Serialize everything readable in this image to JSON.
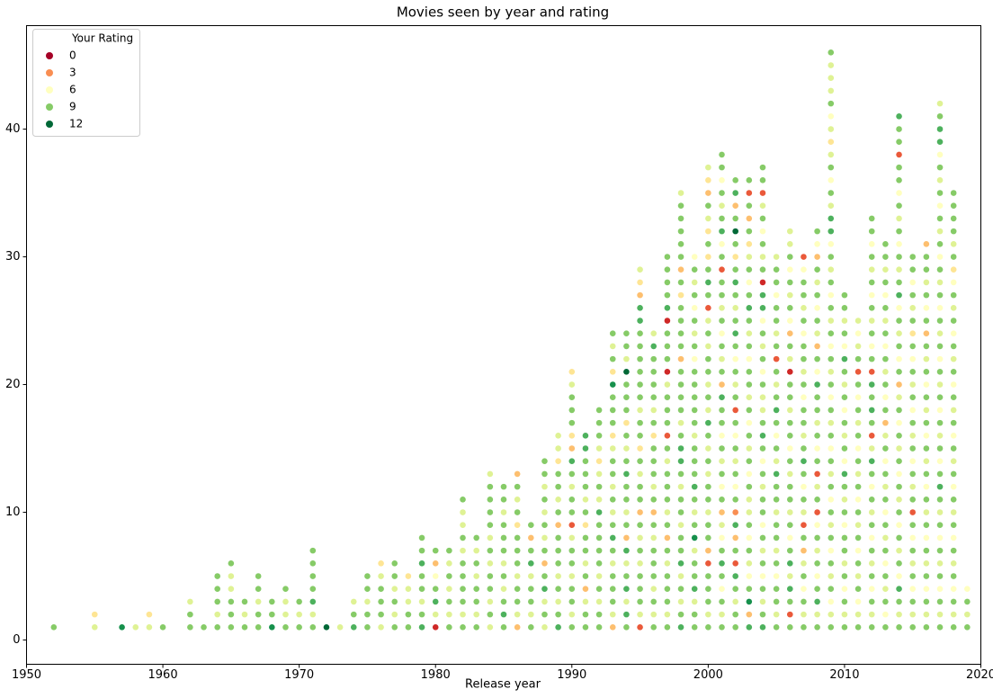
{
  "chart_data": {
    "type": "scatter",
    "title": "Movies seen by year and rating",
    "x_label": "Release year",
    "legend_title": "Your Rating",
    "legend_values": [
      0,
      3,
      6,
      9,
      12
    ],
    "colormap": "RdYlGn",
    "legend_loc": "upper left",
    "xlim": [
      1950,
      2020
    ],
    "xticks": [
      1950,
      1960,
      1970,
      1980,
      1990,
      2000,
      2010,
      2020
    ],
    "ylim": [
      -1.9,
      48.1
    ],
    "yticks": [
      0,
      10,
      20,
      30,
      40
    ],
    "columns": [
      {
        "year": 1952,
        "ratings": [
          9
        ]
      },
      {
        "year": 1955,
        "ratings": [
          7,
          5
        ]
      },
      {
        "year": 1957,
        "ratings": [
          11
        ]
      },
      {
        "year": 1958,
        "ratings": [
          7
        ]
      },
      {
        "year": 1959,
        "ratings": [
          7,
          5
        ]
      },
      {
        "year": 1960,
        "ratings": [
          9
        ]
      },
      {
        "year": 1962,
        "ratings": [
          9,
          9,
          7
        ]
      },
      {
        "year": 1963,
        "ratings": [
          9
        ]
      },
      {
        "year": 1964,
        "ratings": [
          9,
          7,
          9,
          9,
          9
        ]
      },
      {
        "year": 1965,
        "ratings": [
          9,
          9,
          9,
          7,
          7,
          9
        ]
      },
      {
        "year": 1966,
        "ratings": [
          9,
          7,
          9
        ]
      },
      {
        "year": 1967,
        "ratings": [
          9,
          9,
          7,
          9,
          9
        ]
      },
      {
        "year": 1968,
        "ratings": [
          11,
          9,
          9
        ]
      },
      {
        "year": 1969,
        "ratings": [
          9,
          7,
          7,
          9
        ]
      },
      {
        "year": 1970,
        "ratings": [
          9,
          7,
          9
        ]
      },
      {
        "year": 1971,
        "ratings": [
          9,
          7,
          10,
          9,
          9,
          9,
          9
        ]
      },
      {
        "year": 1972,
        "ratings": [
          12
        ]
      },
      {
        "year": 1973,
        "ratings": [
          7
        ]
      },
      {
        "year": 1974,
        "ratings": [
          10,
          9,
          7
        ]
      },
      {
        "year": 1975,
        "ratings": [
          9,
          9,
          7,
          9,
          9
        ]
      },
      {
        "year": 1976,
        "ratings": [
          7,
          9,
          9,
          9,
          7,
          5
        ]
      },
      {
        "year": 1977,
        "ratings": [
          9,
          7,
          9,
          7,
          9,
          9
        ]
      },
      {
        "year": 1978,
        "ratings": [
          9,
          9,
          7,
          7,
          5
        ]
      },
      {
        "year": 1979,
        "ratings": [
          10,
          9,
          7,
          9,
          9,
          10,
          9,
          9
        ]
      },
      {
        "year": 1980,
        "ratings": [
          1,
          7,
          10,
          9,
          6,
          4,
          9
        ]
      },
      {
        "year": 1981,
        "ratings": [
          9,
          7,
          9,
          7,
          9,
          7,
          9
        ]
      },
      {
        "year": 1982,
        "ratings": [
          9,
          7,
          9,
          9,
          9,
          9,
          7,
          9,
          7,
          7,
          9
        ]
      },
      {
        "year": 1983,
        "ratings": [
          9,
          7,
          9,
          9,
          7,
          9,
          7,
          9
        ]
      },
      {
        "year": 1984,
        "ratings": [
          7,
          9,
          7,
          9,
          9,
          7,
          9,
          7,
          9,
          9,
          9,
          9,
          7
        ]
      },
      {
        "year": 1985,
        "ratings": [
          9,
          10,
          9,
          7,
          9,
          7,
          9,
          9,
          9,
          7,
          9,
          9
        ]
      },
      {
        "year": 1986,
        "ratings": [
          4,
          7,
          9,
          9,
          7,
          9,
          9,
          9,
          5,
          9,
          7,
          9,
          4
        ]
      },
      {
        "year": 1987,
        "ratings": [
          9,
          7,
          9,
          9,
          7,
          10,
          9,
          4,
          9
        ]
      },
      {
        "year": 1988,
        "ratings": [
          7,
          9,
          7,
          10,
          9,
          4,
          9,
          7,
          9,
          7,
          9,
          7,
          9,
          9
        ]
      },
      {
        "year": 1989,
        "ratings": [
          10,
          9,
          7,
          9,
          7,
          9,
          9,
          9,
          4,
          9,
          7,
          9,
          9,
          5,
          7,
          7
        ]
      },
      {
        "year": 1990,
        "ratings": [
          9,
          7,
          9,
          9,
          7,
          9,
          9,
          7,
          2,
          9,
          9,
          7,
          9,
          10,
          4,
          5,
          9,
          9,
          9,
          7,
          5
        ]
      },
      {
        "year": 1991,
        "ratings": [
          9,
          9,
          7,
          4,
          9,
          7,
          9,
          9,
          5,
          9,
          7,
          9,
          9,
          9,
          10,
          10
        ]
      },
      {
        "year": 1992,
        "ratings": [
          9,
          9,
          7,
          9,
          7,
          9,
          9,
          9,
          9,
          10,
          7,
          9,
          7,
          5,
          7,
          9,
          9,
          9
        ]
      },
      {
        "year": 1993,
        "ratings": [
          4,
          7,
          9,
          9,
          9,
          7,
          9,
          10,
          9,
          7,
          9,
          7,
          9,
          9,
          7,
          5,
          9,
          9,
          9,
          11,
          5,
          9,
          7,
          9
        ]
      },
      {
        "year": 1994,
        "ratings": [
          9,
          10,
          7,
          10,
          9,
          7,
          10,
          4,
          9,
          7,
          9,
          9,
          10,
          9,
          7,
          9,
          5,
          9,
          9,
          9,
          12,
          7,
          9,
          9
        ]
      },
      {
        "year": 1995,
        "ratings": [
          2,
          7,
          9,
          9,
          9,
          7,
          9,
          7,
          9,
          4,
          9,
          9,
          7,
          9,
          5,
          9,
          9,
          7,
          9,
          9,
          9,
          9,
          9,
          9,
          10,
          10,
          4,
          5,
          7
        ]
      },
      {
        "year": 1996,
        "ratings": [
          9,
          7,
          9,
          7,
          9,
          9,
          9,
          7,
          9,
          4,
          9,
          7,
          9,
          9,
          9,
          5,
          9,
          7,
          9,
          9,
          9,
          9,
          10,
          7
        ]
      },
      {
        "year": 1997,
        "ratings": [
          9,
          7,
          9,
          9,
          9,
          7,
          9,
          4,
          9,
          7,
          9,
          9,
          9,
          7,
          9,
          2,
          9,
          9,
          9,
          7,
          1,
          9,
          9,
          9,
          1,
          10,
          9,
          9,
          9,
          9
        ]
      },
      {
        "year": 1998,
        "ratings": [
          10,
          9,
          7,
          9,
          7,
          10,
          9,
          9,
          7,
          9,
          9,
          7,
          9,
          10,
          10,
          9,
          7,
          9,
          9,
          9,
          9,
          4,
          9,
          9,
          9,
          9,
          5,
          9,
          4,
          9,
          9,
          9,
          9,
          9,
          7
        ]
      },
      {
        "year": 1999,
        "ratings": [
          9,
          9,
          7,
          10,
          9,
          9,
          7,
          11,
          9,
          7,
          9,
          10,
          9,
          9,
          9,
          7,
          9,
          9,
          9,
          9,
          9,
          6,
          9,
          7,
          9,
          6,
          9,
          7,
          9,
          6
        ]
      },
      {
        "year": 2000,
        "ratings": [
          9,
          7,
          9,
          9,
          9,
          2,
          4,
          9,
          9,
          7,
          9,
          9,
          7,
          9,
          7,
          9,
          10,
          7,
          9,
          7,
          9,
          9,
          7,
          9,
          7,
          2,
          9,
          10,
          9,
          5,
          9,
          5,
          7,
          9,
          4,
          5,
          7
        ]
      },
      {
        "year": 2001,
        "ratings": [
          9,
          7,
          9,
          6,
          9,
          10,
          9,
          6,
          7,
          4,
          9,
          6,
          9,
          7,
          9,
          6,
          9,
          9,
          10,
          4,
          9,
          7,
          9,
          6,
          9,
          7,
          9,
          9,
          2,
          9,
          6,
          10,
          9,
          7,
          9,
          6,
          9,
          9
        ]
      },
      {
        "year": 2002,
        "ratings": [
          9,
          9,
          7,
          9,
          10,
          2,
          9,
          4,
          10,
          3,
          9,
          6,
          9,
          7,
          9,
          6,
          9,
          2,
          9,
          7,
          9,
          6,
          9,
          10,
          9,
          7,
          9,
          10,
          9,
          5,
          9,
          12,
          9,
          4,
          10,
          9
        ]
      },
      {
        "year": 2003,
        "ratings": [
          10,
          4,
          11,
          9,
          6,
          7,
          9,
          6,
          9,
          7,
          7,
          9,
          6,
          9,
          7,
          9,
          6,
          9,
          7,
          9,
          9,
          6,
          9,
          7,
          9,
          10,
          9,
          6,
          9,
          7,
          5,
          9,
          4,
          9,
          2,
          9
        ]
      },
      {
        "year": 2004,
        "ratings": [
          10,
          9,
          7,
          9,
          6,
          9,
          7,
          9,
          6,
          9,
          9,
          7,
          9,
          6,
          9,
          10,
          9,
          7,
          7,
          9,
          6,
          9,
          7,
          9,
          6,
          10,
          10,
          1,
          9,
          7,
          9,
          6,
          9,
          7,
          2,
          9,
          9
        ]
      },
      {
        "year": 2005,
        "ratings": [
          9,
          7,
          9,
          9,
          6,
          9,
          7,
          9,
          9,
          7,
          9,
          9,
          10,
          7,
          9,
          6,
          9,
          10,
          9,
          7,
          9,
          2,
          9,
          7,
          9,
          9,
          6,
          9,
          9,
          7
        ]
      },
      {
        "year": 2006,
        "ratings": [
          9,
          2,
          9,
          10,
          7,
          10,
          9,
          6,
          9,
          7,
          9,
          9,
          7,
          9,
          6,
          9,
          9,
          7,
          9,
          9,
          1,
          7,
          9,
          4,
          6,
          9,
          7,
          9,
          6,
          9,
          7,
          7
        ]
      },
      {
        "year": 2007,
        "ratings": [
          9,
          7,
          9,
          6,
          9,
          7,
          4,
          9,
          2,
          7,
          9,
          6,
          9,
          10,
          9,
          7,
          9,
          9,
          6,
          9,
          7,
          9,
          9,
          6,
          9,
          7,
          9,
          9,
          6,
          2
        ]
      },
      {
        "year": 2008,
        "ratings": [
          9,
          7,
          10,
          9,
          6,
          9,
          7,
          9,
          6,
          2,
          9,
          7,
          2,
          9,
          6,
          9,
          7,
          9,
          9,
          10,
          6,
          9,
          4,
          7,
          9,
          6,
          9,
          7,
          9,
          4,
          6,
          9
        ]
      },
      {
        "year": 2009,
        "ratings": [
          9,
          7,
          6,
          9,
          7,
          9,
          6,
          9,
          7,
          9,
          6,
          9,
          7,
          9,
          6,
          9,
          7,
          9,
          6,
          9,
          7,
          9,
          6,
          9,
          7,
          9,
          6,
          9,
          7,
          9,
          6,
          10,
          10,
          7,
          9,
          6,
          9,
          7,
          5,
          7,
          6,
          9,
          7,
          7,
          7,
          9
        ]
      },
      {
        "year": 2010,
        "ratings": [
          9,
          7,
          9,
          6,
          9,
          7,
          9,
          9,
          6,
          9,
          7,
          9,
          10,
          6,
          9,
          7,
          9,
          6,
          9,
          7,
          9,
          10,
          6,
          9,
          7,
          9,
          9
        ]
      },
      {
        "year": 2011,
        "ratings": [
          9,
          7,
          6,
          9,
          7,
          9,
          6,
          9,
          7,
          9,
          6,
          9,
          7,
          9,
          6,
          9,
          7,
          9,
          6,
          9,
          2,
          9,
          7,
          6,
          7
        ]
      },
      {
        "year": 2012,
        "ratings": [
          9,
          7,
          9,
          6,
          9,
          7,
          9,
          6,
          9,
          7,
          9,
          6,
          9,
          10,
          7,
          2,
          9,
          10,
          9,
          10,
          2,
          9,
          6,
          9,
          7,
          9,
          6,
          9,
          7,
          9,
          6,
          9,
          9
        ]
      },
      {
        "year": 2013,
        "ratings": [
          9,
          6,
          9,
          7,
          9,
          6,
          9,
          7,
          9,
          6,
          9,
          7,
          9,
          6,
          9,
          7,
          4,
          9,
          6,
          9,
          7,
          9,
          6,
          9,
          7,
          9,
          6,
          9,
          7,
          9,
          9
        ]
      },
      {
        "year": 2014,
        "ratings": [
          9,
          7,
          9,
          10,
          6,
          9,
          7,
          9,
          6,
          9,
          7,
          9,
          6,
          9,
          7,
          9,
          6,
          9,
          7,
          4,
          9,
          6,
          9,
          7,
          9,
          6,
          10,
          9,
          7,
          9,
          6,
          9,
          7,
          9,
          6,
          9,
          9,
          2,
          9,
          9,
          10
        ]
      },
      {
        "year": 2015,
        "ratings": [
          9,
          7,
          9,
          6,
          9,
          7,
          9,
          6,
          9,
          2,
          9,
          7,
          9,
          6,
          9,
          7,
          9,
          6,
          9,
          7,
          9,
          6,
          9,
          5,
          9,
          7,
          9,
          6,
          9,
          9
        ]
      },
      {
        "year": 2016,
        "ratings": [
          9,
          7,
          9,
          6,
          9,
          7,
          9,
          6,
          9,
          7,
          9,
          6,
          9,
          7,
          9,
          6,
          9,
          7,
          9,
          6,
          9,
          7,
          9,
          4,
          9,
          6,
          9,
          7,
          9,
          9,
          4
        ]
      },
      {
        "year": 2017,
        "ratings": [
          9,
          7,
          9,
          6,
          9,
          7,
          9,
          6,
          9,
          7,
          9,
          10,
          9,
          6,
          9,
          7,
          9,
          6,
          9,
          7,
          9,
          6,
          9,
          7,
          9,
          6,
          9,
          7,
          9,
          6,
          9,
          7,
          9,
          6,
          9,
          7,
          9,
          6,
          10,
          10,
          9,
          7
        ]
      },
      {
        "year": 2018,
        "ratings": [
          9,
          7,
          9,
          6,
          9,
          7,
          9,
          6,
          9,
          7,
          9,
          6,
          9,
          7,
          9,
          6,
          9,
          7,
          9,
          6,
          9,
          7,
          9,
          6,
          9,
          7,
          9,
          6,
          5,
          9,
          7,
          9,
          9,
          9,
          9
        ]
      },
      {
        "year": 2019,
        "ratings": [
          9,
          7,
          9,
          6
        ]
      }
    ]
  }
}
